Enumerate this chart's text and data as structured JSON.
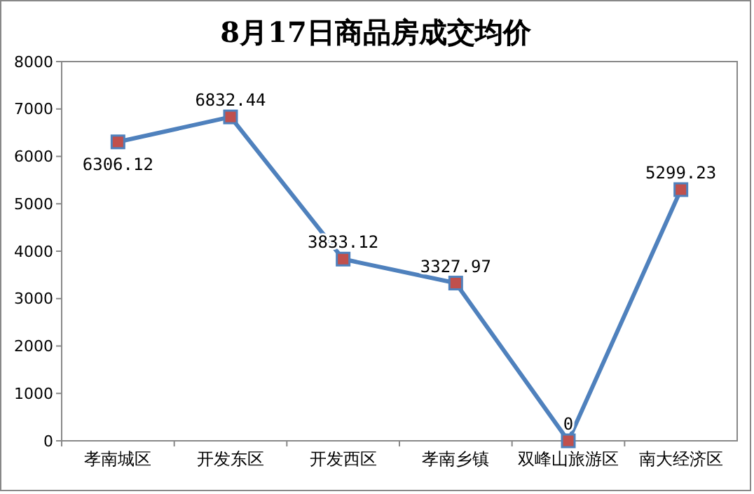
{
  "chart_data": {
    "type": "line",
    "title": "8月17日商品房成交均价",
    "categories": [
      "孝南城区",
      "开发东区",
      "开发西区",
      "孝南乡镇",
      "双峰山旅游区",
      "南大经济区"
    ],
    "series": [
      {
        "color": "#4f81bd",
        "values": [
          6306.12,
          6832.44,
          3833.12,
          3327.97,
          0,
          5299.23
        ]
      }
    ],
    "ylim": [
      0,
      8000
    ],
    "yticks": [
      0,
      1000,
      2000,
      3000,
      4000,
      5000,
      6000,
      7000,
      8000
    ],
    "grid": false,
    "marker": "square",
    "line_style": "solid",
    "data_labels": true
  }
}
